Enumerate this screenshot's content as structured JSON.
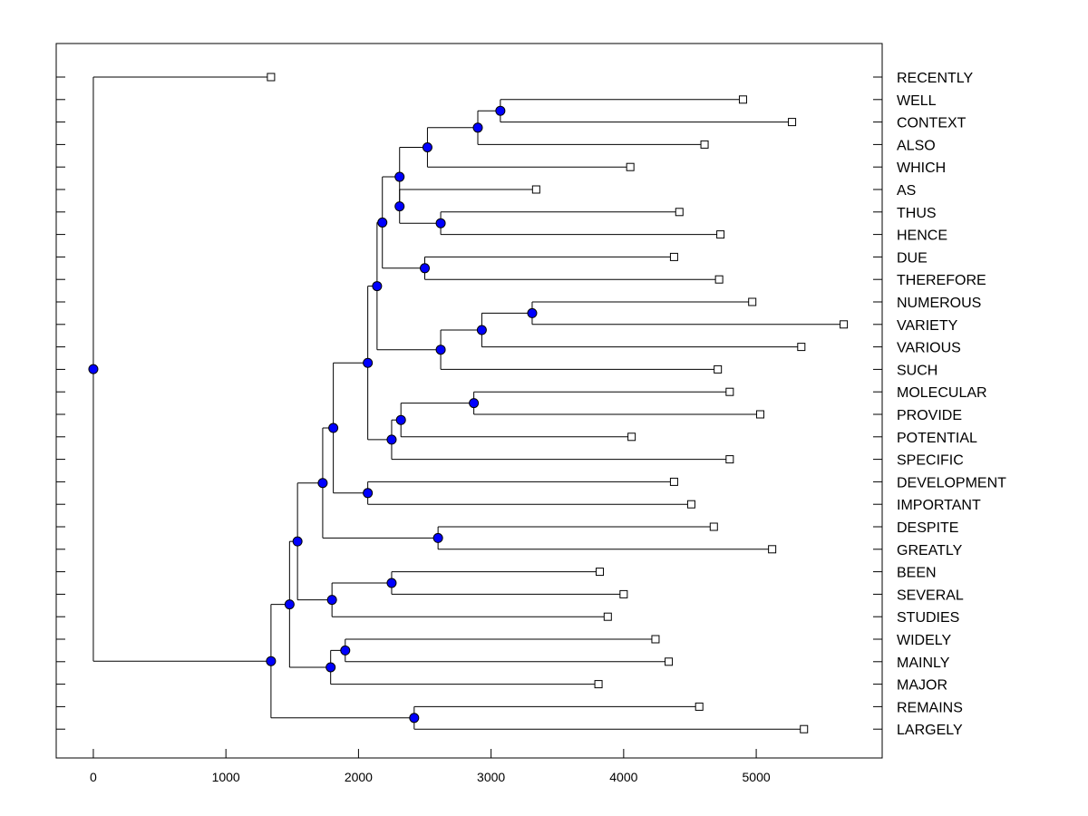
{
  "chart_data": {
    "type": "dendrogram",
    "orientation": "horizontal",
    "title": "",
    "xlabel": "",
    "ylabel": "",
    "xlim": [
      -280,
      5950
    ],
    "xticks": [
      0,
      1000,
      2000,
      3000,
      4000,
      5000
    ],
    "xtick_labels": [
      "0",
      "1000",
      "2000",
      "3000",
      "4000",
      "5000"
    ],
    "colors": {
      "node": "#0000ff",
      "leaf": "#ffffff",
      "line": "#000000"
    },
    "leaves": [
      {
        "label": "RECENTLY",
        "x": 1340
      },
      {
        "label": "WELL",
        "x": 4900
      },
      {
        "label": "CONTEXT",
        "x": 5270
      },
      {
        "label": "ALSO",
        "x": 4610
      },
      {
        "label": "WHICH",
        "x": 4050
      },
      {
        "label": "AS",
        "x": 3340
      },
      {
        "label": "THUS",
        "x": 4420
      },
      {
        "label": "HENCE",
        "x": 4730
      },
      {
        "label": "DUE",
        "x": 4380
      },
      {
        "label": "THEREFORE",
        "x": 4720
      },
      {
        "label": "NUMEROUS",
        "x": 4970
      },
      {
        "label": "VARIETY",
        "x": 5660
      },
      {
        "label": "VARIOUS",
        "x": 5340
      },
      {
        "label": "SUCH",
        "x": 4710
      },
      {
        "label": "MOLECULAR",
        "x": 4800
      },
      {
        "label": "PROVIDE",
        "x": 5030
      },
      {
        "label": "POTENTIAL",
        "x": 4060
      },
      {
        "label": "SPECIFIC",
        "x": 4800
      },
      {
        "label": "DEVELOPMENT",
        "x": 4380
      },
      {
        "label": "IMPORTANT",
        "x": 4510
      },
      {
        "label": "DESPITE",
        "x": 4680
      },
      {
        "label": "GREATLY",
        "x": 5120
      },
      {
        "label": "BEEN",
        "x": 3820
      },
      {
        "label": "SEVERAL",
        "x": 4000
      },
      {
        "label": "STUDIES",
        "x": 3880
      },
      {
        "label": "WIDELY",
        "x": 4240
      },
      {
        "label": "MAINLY",
        "x": 4340
      },
      {
        "label": "MAJOR",
        "x": 3810
      },
      {
        "label": "REMAINS",
        "x": 4570
      },
      {
        "label": "LARGELY",
        "x": 5360
      }
    ],
    "merges": [
      {
        "id": "n1",
        "x": 3070,
        "children": [
          "WELL",
          "CONTEXT"
        ]
      },
      {
        "id": "n2",
        "x": 2900,
        "children": [
          "n1",
          "ALSO"
        ]
      },
      {
        "id": "n3",
        "x": 2520,
        "children": [
          "n2",
          "WHICH"
        ]
      },
      {
        "id": "n4",
        "x": 2620,
        "children": [
          "THUS",
          "HENCE"
        ]
      },
      {
        "id": "n5",
        "x": 2310,
        "children": [
          "AS",
          "n4"
        ]
      },
      {
        "id": "n6",
        "x": 2310,
        "children": [
          "n3",
          "n5"
        ]
      },
      {
        "id": "n7",
        "x": 2500,
        "children": [
          "DUE",
          "THEREFORE"
        ]
      },
      {
        "id": "n8",
        "x": 2180,
        "children": [
          "n6",
          "n7"
        ]
      },
      {
        "id": "n9",
        "x": 3310,
        "children": [
          "NUMEROUS",
          "VARIETY"
        ]
      },
      {
        "id": "n10",
        "x": 2930,
        "children": [
          "n9",
          "VARIOUS"
        ]
      },
      {
        "id": "n11",
        "x": 2620,
        "children": [
          "n10",
          "SUCH"
        ]
      },
      {
        "id": "n12",
        "x": 2140,
        "children": [
          "n8",
          "n11"
        ]
      },
      {
        "id": "n13",
        "x": 2870,
        "children": [
          "MOLECULAR",
          "PROVIDE"
        ]
      },
      {
        "id": "n14",
        "x": 2320,
        "children": [
          "n13",
          "POTENTIAL"
        ]
      },
      {
        "id": "n15",
        "x": 2250,
        "children": [
          "n14",
          "SPECIFIC"
        ]
      },
      {
        "id": "n16",
        "x": 2070,
        "children": [
          "n12",
          "n15"
        ]
      },
      {
        "id": "n17",
        "x": 2070,
        "children": [
          "DEVELOPMENT",
          "IMPORTANT"
        ]
      },
      {
        "id": "n18",
        "x": 1810,
        "children": [
          "n16",
          "n17"
        ]
      },
      {
        "id": "n19",
        "x": 2600,
        "children": [
          "DESPITE",
          "GREATLY"
        ]
      },
      {
        "id": "n20",
        "x": 1730,
        "children": [
          "n18",
          "n19"
        ]
      },
      {
        "id": "n21",
        "x": 2250,
        "children": [
          "BEEN",
          "SEVERAL"
        ]
      },
      {
        "id": "n22",
        "x": 1800,
        "children": [
          "n21",
          "STUDIES"
        ]
      },
      {
        "id": "n23",
        "x": 1540,
        "children": [
          "n20",
          "n22"
        ]
      },
      {
        "id": "n24",
        "x": 1900,
        "children": [
          "WIDELY",
          "MAINLY"
        ]
      },
      {
        "id": "n25",
        "x": 1790,
        "children": [
          "n24",
          "MAJOR"
        ]
      },
      {
        "id": "n26",
        "x": 1480,
        "children": [
          "n23",
          "n25"
        ]
      },
      {
        "id": "n27",
        "x": 2420,
        "children": [
          "REMAINS",
          "LARGELY"
        ]
      },
      {
        "id": "n28",
        "x": 1340,
        "children": [
          "n26",
          "n27"
        ]
      },
      {
        "id": "n29",
        "x": 0,
        "children": [
          "RECENTLY",
          "n28"
        ]
      }
    ]
  }
}
